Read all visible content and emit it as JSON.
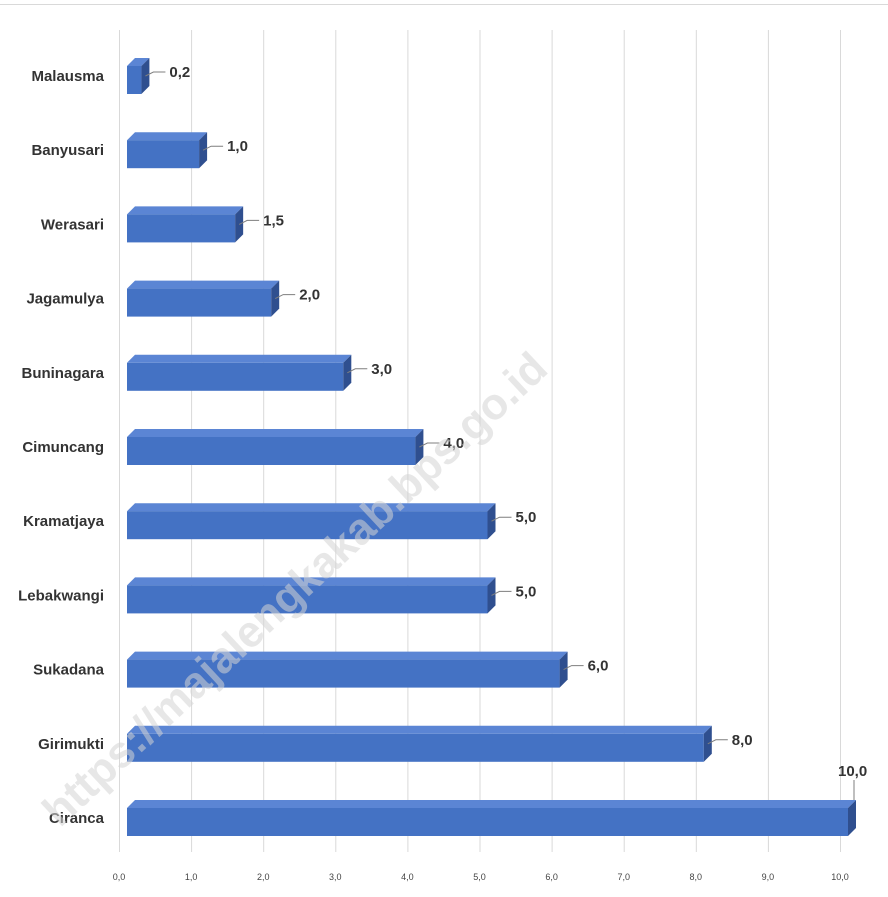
{
  "watermark": "https://majalengkakab.bps.go.id",
  "colors": {
    "bar_front": "#4472c4",
    "bar_top": "#5b85d4",
    "bar_side": "#2f4f8f",
    "gridline": "#d9d9d9",
    "leader": "#7f7f7f"
  },
  "chart_data": {
    "type": "bar",
    "orientation": "horizontal",
    "style": "3d",
    "categories": [
      "Malausma",
      "Banyusari",
      "Werasari",
      "Jagamulya",
      "Buninagara",
      "Cimuncang",
      "Kramatjaya",
      "Lebakwangi",
      "Sukadana",
      "Girimukti",
      "Ciranca"
    ],
    "values": [
      0.2,
      1.0,
      1.5,
      2.0,
      3.0,
      4.0,
      5.0,
      5.0,
      6.0,
      8.0,
      10.0
    ],
    "data_labels": [
      "0,2",
      "1,0",
      "1,5",
      "2,0",
      "3,0",
      "4,0",
      "5,0",
      "5,0",
      "6,0",
      "8,0",
      "10,0"
    ],
    "xlim": [
      0,
      10
    ],
    "xticks": [
      0,
      1,
      2,
      3,
      4,
      5,
      6,
      7,
      8,
      9,
      10
    ],
    "xtick_labels": [
      "0,0",
      "1,0",
      "2,0",
      "3,0",
      "4,0",
      "5,0",
      "6,0",
      "7,0",
      "8,0",
      "9,0",
      "10,0"
    ],
    "title": "",
    "xlabel": "",
    "ylabel": "",
    "grid": true,
    "legend": "none"
  }
}
